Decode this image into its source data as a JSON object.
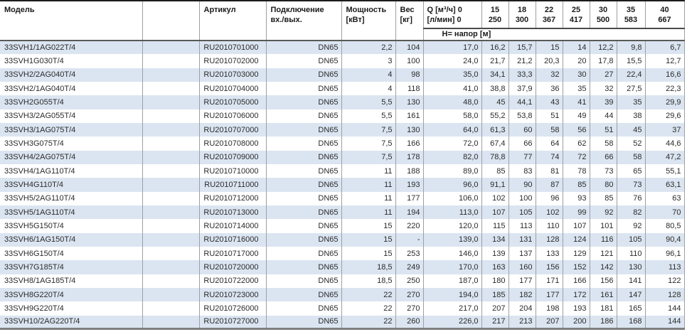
{
  "table": {
    "header": {
      "model": "Модель",
      "spacer": "",
      "article": "Артикул",
      "connection_line1": "Подключение",
      "connection_line2": "вх./вых.",
      "power_line1": "Мощность",
      "power_line2": "[кВт]",
      "weight_line1": "Вес",
      "weight_line2": "[кг]",
      "q_line1": "Q [м³/ч] 0",
      "q_line2": "[л/мин] 0",
      "napor": "Н= напор [м]",
      "flows": [
        {
          "m3h": "15",
          "lmin": "250"
        },
        {
          "m3h": "18",
          "lmin": "300"
        },
        {
          "m3h": "22",
          "lmin": "367"
        },
        {
          "m3h": "25",
          "lmin": "417"
        },
        {
          "m3h": "30",
          "lmin": "500"
        },
        {
          "m3h": "35",
          "lmin": "583"
        },
        {
          "m3h": "40",
          "lmin": "667"
        }
      ]
    },
    "rows": [
      [
        "33SVH1/1AG022T/4",
        "RU2010701000",
        "DN65",
        "2,2",
        "104",
        "17,0",
        "16,2",
        "15,7",
        "15",
        "14",
        "12,2",
        "9,8",
        "6,7"
      ],
      [
        "33SVH1G030T/4",
        "RU2010702000",
        "DN65",
        "3",
        "100",
        "24,0",
        "21,7",
        "21,2",
        "20,3",
        "20",
        "17,8",
        "15,5",
        "12,7"
      ],
      [
        "33SVH2/2AG040T/4",
        "RU2010703000",
        "DN65",
        "4",
        "98",
        "35,0",
        "34,1",
        "33,3",
        "32",
        "30",
        "27",
        "22,4",
        "16,6"
      ],
      [
        "33SVH2/1AG040T/4",
        "RU2010704000",
        "DN65",
        "4",
        "118",
        "41,0",
        "38,8",
        "37,9",
        "36",
        "35",
        "32",
        "27,5",
        "22,3"
      ],
      [
        "33SVH2G055T/4",
        "RU2010705000",
        "DN65",
        "5,5",
        "130",
        "48,0",
        "45",
        "44,1",
        "43",
        "41",
        "39",
        "35",
        "29,9"
      ],
      [
        "33SVH3/2AG055T/4",
        "RU2010706000",
        "DN65",
        "5,5",
        "161",
        "58,0",
        "55,2",
        "53,8",
        "51",
        "49",
        "44",
        "38",
        "29,6"
      ],
      [
        "33SVH3/1AG075T/4",
        "RU2010707000",
        "DN65",
        "7,5",
        "130",
        "64,0",
        "61,3",
        "60",
        "58",
        "56",
        "51",
        "45",
        "37"
      ],
      [
        "33SVH3G075T/4",
        "RU2010708000",
        "DN65",
        "7,5",
        "166",
        "72,0",
        "67,4",
        "66",
        "64",
        "62",
        "58",
        "52",
        "44,6"
      ],
      [
        "33SVH4/2AG075T/4",
        "RU2010709000",
        "DN65",
        "7,5",
        "178",
        "82,0",
        "78,8",
        "77",
        "74",
        "72",
        "66",
        "58",
        "47,2"
      ],
      [
        "33SVH4/1AG110T/4",
        "RU2010710000",
        "DN65",
        "11",
        "188",
        "89,0",
        "85",
        "83",
        "81",
        "78",
        "73",
        "65",
        "55,1"
      ],
      [
        "33SVH4G110T/4",
        "RU2010711000",
        "DN65",
        "11",
        "193",
        "96,0",
        "91,1",
        "90",
        "87",
        "85",
        "80",
        "73",
        "63,1"
      ],
      [
        "33SVH5/2AG110T/4",
        "RU2010712000",
        "DN65",
        "11",
        "177",
        "106,0",
        "102",
        "100",
        "96",
        "93",
        "85",
        "76",
        "63"
      ],
      [
        "33SVH5/1AG110T/4",
        "RU2010713000",
        "DN65",
        "11",
        "194",
        "113,0",
        "107",
        "105",
        "102",
        "99",
        "92",
        "82",
        "70"
      ],
      [
        "33SVH5G150T/4",
        "RU2010714000",
        "DN65",
        "15",
        "220",
        "120,0",
        "115",
        "113",
        "110",
        "107",
        "101",
        "92",
        "80,5"
      ],
      [
        "33SVH6/1AG150T/4",
        "RU2010716000",
        "DN65",
        "15",
        "-",
        "139,0",
        "134",
        "131",
        "128",
        "124",
        "116",
        "105",
        "90,4"
      ],
      [
        "33SVH6G150T/4",
        "RU2010717000",
        "DN65",
        "15",
        "253",
        "146,0",
        "139",
        "137",
        "133",
        "129",
        "121",
        "110",
        "96,1"
      ],
      [
        "33SVH7G185T/4",
        "RU2010720000",
        "DN65",
        "18,5",
        "249",
        "170,0",
        "163",
        "160",
        "156",
        "152",
        "142",
        "130",
        "113"
      ],
      [
        "33SVH8/1AG185T/4",
        "RU2010722000",
        "DN65",
        "18,5",
        "250",
        "187,0",
        "180",
        "177",
        "171",
        "166",
        "156",
        "141",
        "122"
      ],
      [
        "33SVH8G220T/4",
        "RU2010723000",
        "DN65",
        "22",
        "270",
        "194,0",
        "185",
        "182",
        "177",
        "172",
        "161",
        "147",
        "128"
      ],
      [
        "33SVH9G220T/4",
        "RU2010726000",
        "DN65",
        "22",
        "270",
        "217,0",
        "207",
        "204",
        "198",
        "193",
        "181",
        "165",
        "144"
      ],
      [
        "33SVH10/2AG220T/4",
        "RU2010727000",
        "DN65",
        "22",
        "260",
        "226,0",
        "217",
        "213",
        "207",
        "200",
        "186",
        "168",
        "144"
      ]
    ],
    "colors": {
      "row_alt": "#dbe5f1",
      "row_base": "#ffffff",
      "grid": "#9aa0a6",
      "header_rule": "#595959",
      "top_rule": "#1c1c1c",
      "bottom_rule": "#7f7f7f"
    }
  }
}
